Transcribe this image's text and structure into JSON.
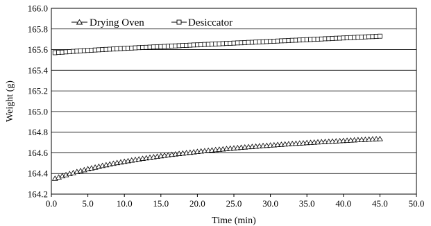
{
  "chart_data": {
    "type": "line",
    "title": "",
    "xlabel": "Time (min)",
    "ylabel": "Weight (g)",
    "xlim": [
      0.0,
      50.0
    ],
    "ylim": [
      164.2,
      166.0
    ],
    "x_ticks": [
      "0.0",
      "5.0",
      "10.0",
      "15.0",
      "20.0",
      "25.0",
      "30.0",
      "35.0",
      "40.0",
      "45.0",
      "50.0"
    ],
    "y_ticks": [
      "164.2",
      "164.4",
      "164.6",
      "164.8",
      "165.0",
      "165.2",
      "165.4",
      "165.6",
      "165.8",
      "166.0"
    ],
    "grid": "horizontal",
    "legend_position": "top-left",
    "series": [
      {
        "name": "Drying Oven",
        "marker": "triangle",
        "x": [
          0.5,
          1.0,
          1.5,
          2.0,
          2.5,
          3.0,
          3.5,
          4.0,
          4.5,
          5.0,
          5.5,
          6.0,
          6.5,
          7.0,
          7.5,
          8.0,
          8.5,
          9.0,
          9.5,
          10.0,
          10.5,
          11.0,
          11.5,
          12.0,
          12.5,
          13.0,
          13.5,
          14.0,
          14.5,
          15.0,
          15.5,
          16.0,
          16.5,
          17.0,
          17.5,
          18.0,
          18.5,
          19.0,
          19.5,
          20.0,
          20.5,
          21.0,
          21.5,
          22.0,
          22.5,
          23.0,
          23.5,
          24.0,
          24.5,
          25.0,
          25.5,
          26.0,
          26.5,
          27.0,
          27.5,
          28.0,
          28.5,
          29.0,
          29.5,
          30.0,
          30.5,
          31.0,
          31.5,
          32.0,
          32.5,
          33.0,
          33.5,
          34.0,
          34.5,
          35.0,
          35.5,
          36.0,
          36.5,
          37.0,
          37.5,
          38.0,
          38.5,
          39.0,
          39.5,
          40.0,
          40.5,
          41.0,
          41.5,
          42.0,
          42.5,
          43.0,
          43.5,
          44.0,
          44.5,
          45.0
        ],
        "y": [
          164.351,
          164.363,
          164.375,
          164.386,
          164.396,
          164.406,
          164.416,
          164.425,
          164.434,
          164.443,
          164.451,
          164.459,
          164.467,
          164.475,
          164.482,
          164.489,
          164.496,
          164.503,
          164.509,
          164.515,
          164.521,
          164.527,
          164.533,
          164.538,
          164.544,
          164.549,
          164.554,
          164.559,
          164.564,
          164.569,
          164.574,
          164.578,
          164.583,
          164.587,
          164.591,
          164.595,
          164.599,
          164.603,
          164.607,
          164.611,
          164.615,
          164.618,
          164.622,
          164.625,
          164.629,
          164.632,
          164.635,
          164.639,
          164.642,
          164.645,
          164.648,
          164.651,
          164.654,
          164.657,
          164.659,
          164.662,
          164.665,
          164.668,
          164.67,
          164.673,
          164.675,
          164.678,
          164.68,
          164.683,
          164.685,
          164.688,
          164.69,
          164.692,
          164.694,
          164.697,
          164.699,
          164.701,
          164.703,
          164.705,
          164.707,
          164.709,
          164.711,
          164.713,
          164.715,
          164.717,
          164.719,
          164.721,
          164.723,
          164.725,
          164.726,
          164.728,
          164.73,
          164.732,
          164.734,
          164.735
        ]
      },
      {
        "name": "Desiccator",
        "marker": "square",
        "x": [
          0.5,
          1.0,
          1.5,
          2.0,
          2.5,
          3.0,
          3.5,
          4.0,
          4.5,
          5.0,
          5.5,
          6.0,
          6.5,
          7.0,
          7.5,
          8.0,
          8.5,
          9.0,
          9.5,
          10.0,
          10.5,
          11.0,
          11.5,
          12.0,
          12.5,
          13.0,
          13.5,
          14.0,
          14.5,
          15.0,
          15.5,
          16.0,
          16.5,
          17.0,
          17.5,
          18.0,
          18.5,
          19.0,
          19.5,
          20.0,
          20.5,
          21.0,
          21.5,
          22.0,
          22.5,
          23.0,
          23.5,
          24.0,
          24.5,
          25.0,
          25.5,
          26.0,
          26.5,
          27.0,
          27.5,
          28.0,
          28.5,
          29.0,
          29.5,
          30.0,
          30.5,
          31.0,
          31.5,
          32.0,
          32.5,
          33.0,
          33.5,
          34.0,
          34.5,
          35.0,
          35.5,
          36.0,
          36.5,
          37.0,
          37.5,
          38.0,
          38.5,
          39.0,
          39.5,
          40.0,
          40.5,
          41.0,
          41.5,
          42.0,
          42.5,
          43.0,
          43.5,
          44.0,
          44.5,
          45.0
        ],
        "y": [
          165.57,
          165.573,
          165.575,
          165.578,
          165.58,
          165.583,
          165.585,
          165.588,
          165.59,
          165.592,
          165.594,
          165.596,
          165.598,
          165.6,
          165.602,
          165.604,
          165.606,
          165.608,
          165.61,
          165.612,
          165.614,
          165.615,
          165.617,
          165.619,
          165.621,
          165.622,
          165.624,
          165.626,
          165.628,
          165.629,
          165.631,
          165.633,
          165.635,
          165.636,
          165.638,
          165.64,
          165.641,
          165.643,
          165.645,
          165.646,
          165.648,
          165.65,
          165.651,
          165.653,
          165.655,
          165.656,
          165.658,
          165.66,
          165.661,
          165.663,
          165.665,
          165.666,
          165.668,
          165.67,
          165.671,
          165.673,
          165.675,
          165.676,
          165.678,
          165.68,
          165.681,
          165.683,
          165.685,
          165.686,
          165.688,
          165.69,
          165.691,
          165.693,
          165.695,
          165.696,
          165.698,
          165.7,
          165.701,
          165.703,
          165.705,
          165.706,
          165.708,
          165.71,
          165.711,
          165.713,
          165.715,
          165.716,
          165.718,
          165.72,
          165.721,
          165.723,
          165.725,
          165.726,
          165.728,
          165.73
        ]
      }
    ]
  }
}
